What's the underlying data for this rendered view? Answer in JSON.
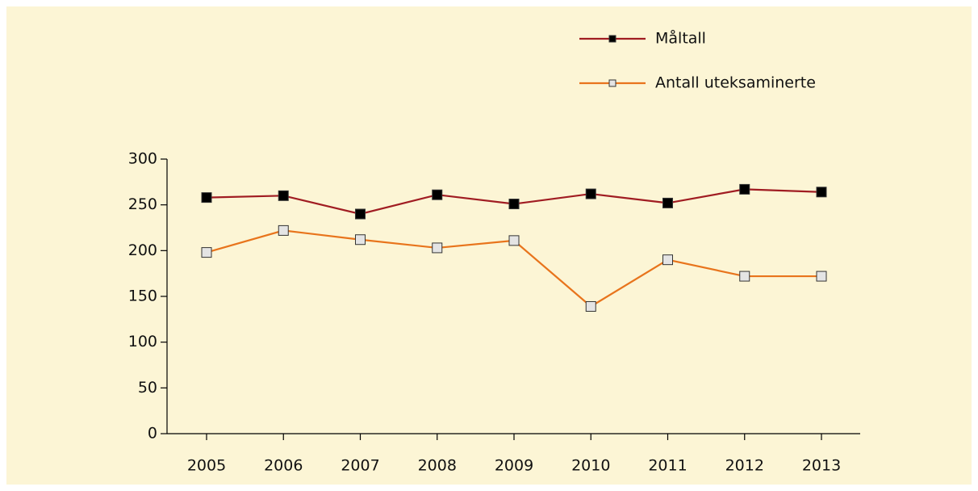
{
  "chart_data": {
    "type": "line",
    "categories": [
      "2005",
      "2006",
      "2007",
      "2008",
      "2009",
      "2010",
      "2011",
      "2012",
      "2013"
    ],
    "series": [
      {
        "name": "Måltall",
        "color": "#a01c22",
        "marker_fill": "#000000",
        "values": [
          258,
          260,
          240,
          261,
          251,
          262,
          252,
          267,
          264
        ]
      },
      {
        "name": "Antall uteksaminerte",
        "color": "#e8741c",
        "marker_fill": "#e4e4e4",
        "values": [
          198,
          222,
          212,
          203,
          211,
          139,
          190,
          172,
          172
        ]
      }
    ],
    "ylim": [
      0,
      300
    ],
    "yticks": [
      0,
      50,
      100,
      150,
      200,
      250,
      300
    ],
    "grid": false,
    "legend": "top-right"
  }
}
